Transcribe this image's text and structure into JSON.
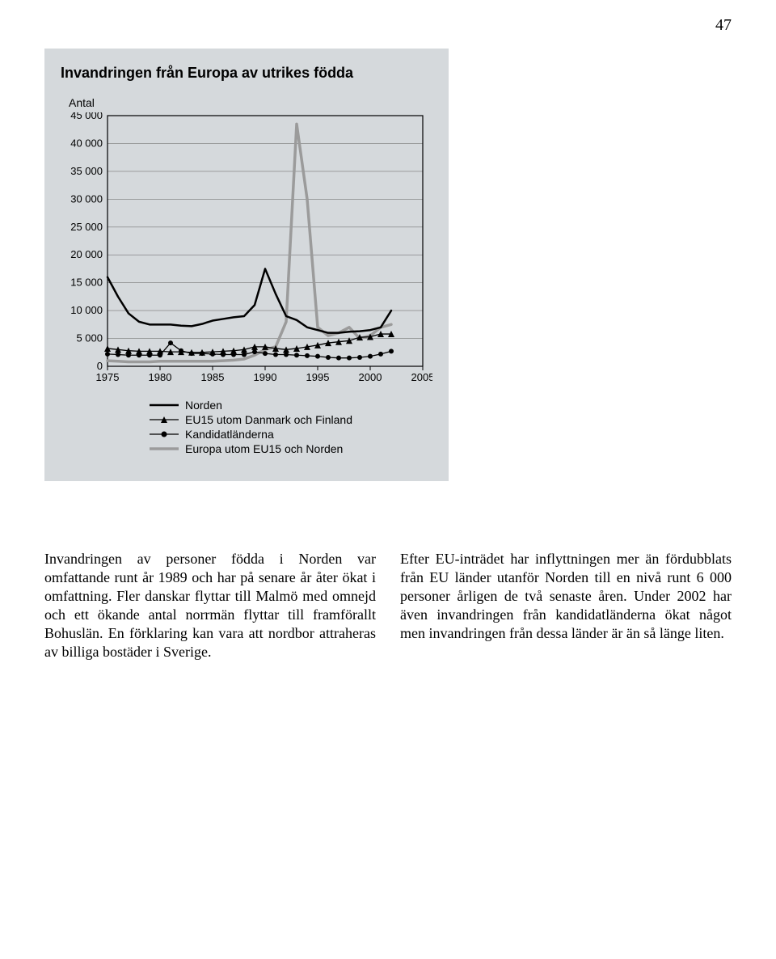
{
  "page_number": "47",
  "chart": {
    "title": "Invandringen från Europa av utrikes födda",
    "y_axis_label": "Antal",
    "type": "line",
    "background_color": "#d5d9dc",
    "plot_background": "#d5d9dc",
    "frame_color": "#000000",
    "gridline_color": "#777777",
    "x_min": 1975,
    "x_max": 2005,
    "y_min": 0,
    "y_max": 45000,
    "y_ticks": [
      0,
      5000,
      10000,
      15000,
      20000,
      25000,
      30000,
      35000,
      40000,
      45000
    ],
    "y_tick_labels": [
      "0",
      "5 000",
      "10 000",
      "15 000",
      "20 000",
      "25 000",
      "30 000",
      "35 000",
      "40 000",
      "45 000"
    ],
    "x_ticks": [
      1975,
      1980,
      1985,
      1990,
      1995,
      2000,
      2005
    ],
    "x_tick_labels": [
      "1975",
      "1980",
      "1985",
      "1990",
      "1995",
      "2000",
      "2005"
    ],
    "tick_font_size": 13,
    "title_font_size": 18,
    "series": [
      {
        "name": "Norden",
        "color": "#000000",
        "width": 2.5,
        "marker": "none",
        "x": [
          1975,
          1976,
          1977,
          1978,
          1979,
          1980,
          1981,
          1982,
          1983,
          1984,
          1985,
          1986,
          1987,
          1988,
          1989,
          1990,
          1991,
          1992,
          1993,
          1994,
          1995,
          1996,
          1997,
          1998,
          1999,
          2000,
          2001,
          2002
        ],
        "y": [
          16000,
          12500,
          9500,
          8000,
          7500,
          7500,
          7500,
          7300,
          7200,
          7600,
          8200,
          8500,
          8800,
          9000,
          11000,
          17500,
          13000,
          9000,
          8300,
          7000,
          6500,
          6000,
          6000,
          6200,
          6300,
          6500,
          7000,
          10000
        ]
      },
      {
        "name": "EU15 utom Danmark och Finland",
        "color": "#000000",
        "width": 1.3,
        "marker": "triangle",
        "marker_size": 4,
        "x": [
          1975,
          1976,
          1977,
          1978,
          1979,
          1980,
          1981,
          1982,
          1983,
          1984,
          1985,
          1986,
          1987,
          1988,
          1989,
          1990,
          1991,
          1992,
          1993,
          1994,
          1995,
          1996,
          1997,
          1998,
          1999,
          2000,
          2001,
          2002
        ],
        "y": [
          3200,
          3000,
          2800,
          2700,
          2700,
          2700,
          2600,
          2600,
          2500,
          2500,
          2600,
          2700,
          2800,
          3000,
          3500,
          3500,
          3200,
          3000,
          3200,
          3500,
          3800,
          4200,
          4400,
          4600,
          5200,
          5300,
          5800,
          5800
        ]
      },
      {
        "name": "Kandidatländerna",
        "color": "#000000",
        "width": 1.3,
        "marker": "circle",
        "marker_size": 3,
        "x": [
          1975,
          1976,
          1977,
          1978,
          1979,
          1980,
          1981,
          1982,
          1983,
          1984,
          1985,
          1986,
          1987,
          1988,
          1989,
          1990,
          1991,
          1992,
          1993,
          1994,
          1995,
          1996,
          1997,
          1998,
          1999,
          2000,
          2001,
          2002
        ],
        "y": [
          2200,
          2100,
          2000,
          2000,
          2000,
          2000,
          4200,
          2800,
          2300,
          2300,
          2200,
          2100,
          2100,
          2100,
          2600,
          2300,
          2100,
          2100,
          2000,
          1900,
          1800,
          1600,
          1500,
          1500,
          1600,
          1800,
          2200,
          2700
        ]
      },
      {
        "name": "Europa utom EU15 och Norden",
        "color": "#9b9b9b",
        "width": 3.5,
        "marker": "none",
        "x": [
          1975,
          1976,
          1977,
          1978,
          1979,
          1980,
          1981,
          1982,
          1983,
          1984,
          1985,
          1986,
          1987,
          1988,
          1989,
          1990,
          1991,
          1992,
          1993,
          1994,
          1995,
          1996,
          1997,
          1998,
          1999,
          2000,
          2001,
          2002
        ],
        "y": [
          1000,
          900,
          800,
          800,
          800,
          900,
          900,
          900,
          900,
          900,
          900,
          1000,
          1100,
          1300,
          2000,
          3000,
          3500,
          8000,
          43500,
          30000,
          7000,
          5500,
          6000,
          7000,
          5000,
          5500,
          7000,
          7500
        ]
      }
    ],
    "legend": {
      "items": [
        {
          "key": "norden",
          "label": "Norden"
        },
        {
          "key": "eu15",
          "label": "EU15 utom Danmark och Finland"
        },
        {
          "key": "kandidat",
          "label": "Kandidatländerna"
        },
        {
          "key": "europa",
          "label": "Europa utom EU15 och Norden"
        }
      ]
    }
  },
  "body_text": {
    "col1": "Invandringen av personer födda i Norden var omfattande runt år 1989 och har på senare år åter ökat i omfattning. Fler danskar flyttar till Malmö med omnejd och ett ökande antal norrmän flyttar till framförallt Bohuslän. En förklaring kan vara att nordbor attraheras av billiga bostäder i Sverige.",
    "col2": "Efter EU-inträdet har inflyttningen mer än fördubblats från EU länder utanför Norden till en nivå runt 6 000 personer årligen de två senaste åren. Under 2002 har även invandringen från kandidatländerna ökat något men invandringen från dessa länder är än så länge liten."
  }
}
